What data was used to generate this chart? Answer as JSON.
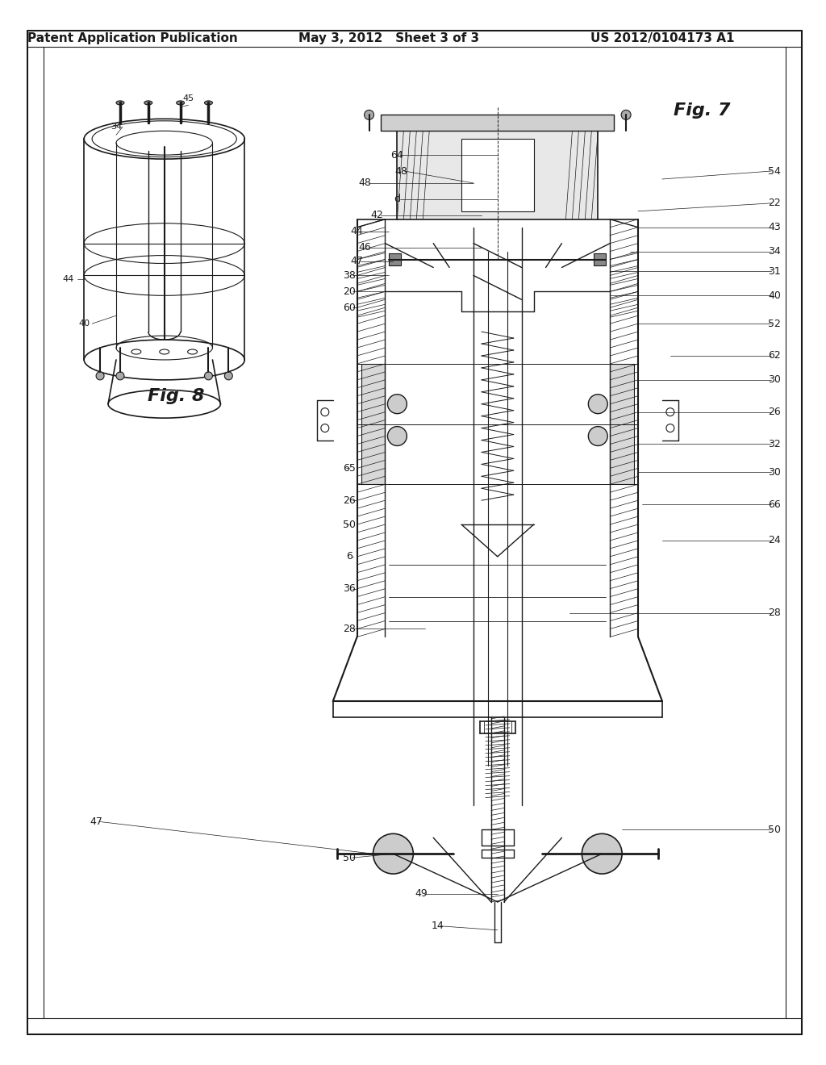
{
  "header_left": "Patent Application Publication",
  "header_mid": "May 3, 2012   Sheet 3 of 3",
  "header_right": "US 2012/0104173 A1",
  "fig7_label": "Fig. 7",
  "fig8_label": "Fig. 8",
  "background_color": "#ffffff",
  "line_color": "#1a1a1a",
  "hatch_color": "#333333",
  "header_fontsize": 11,
  "label_fontsize": 9,
  "fig_label_fontsize": 14
}
